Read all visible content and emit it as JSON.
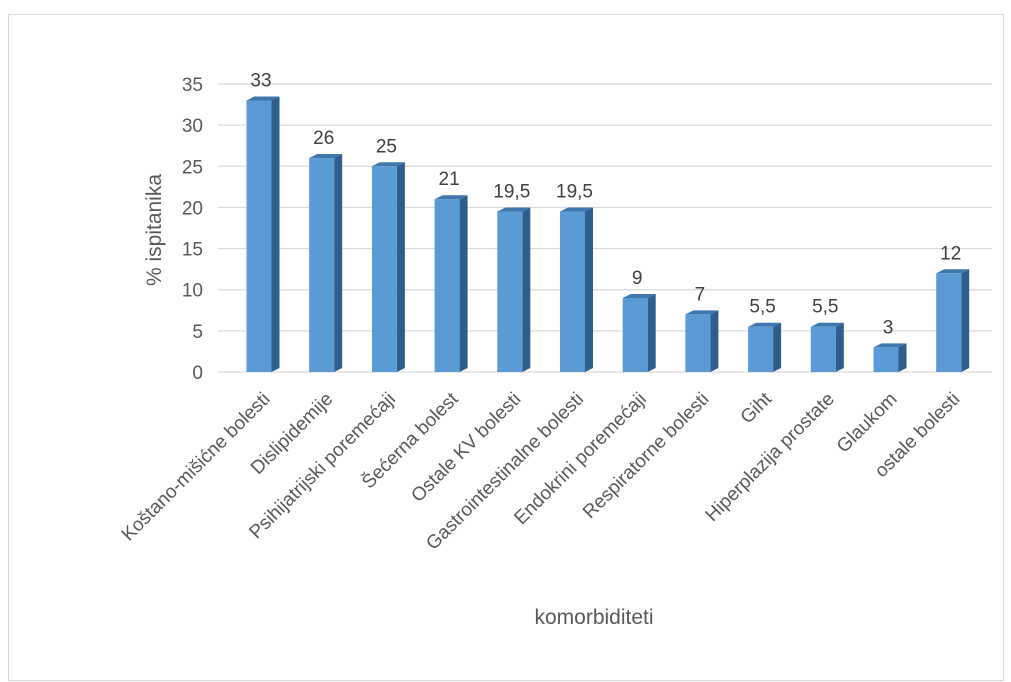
{
  "chart_data": {
    "type": "bar",
    "title": "",
    "xlabel": "komorbiditeti",
    "ylabel": "% ispitanika",
    "ylim": [
      0,
      35
    ],
    "yticks": [
      "0",
      "5",
      "10",
      "15",
      "20",
      "25",
      "30",
      "35"
    ],
    "grid": true,
    "legend": "none",
    "bar_style": "3d",
    "colors": {
      "bar_front": "#5b9bd5",
      "bar_side": "#2e5f8c",
      "bar_top": "#3f77ad",
      "grid": "#d9d9d9"
    },
    "categories": [
      "Koštano-mišićne  bolesti",
      "Dislipidemije",
      "Psihijatrijski poremećaji",
      "Šećerna bolest",
      "Ostale KV bolesti",
      "Gastrointestinalne bolesti",
      "Endokrini poremećaji",
      "Respiratorne bolesti",
      "Giht",
      "Hiperplazija prostate",
      "Glaukom",
      "ostale bolesti"
    ],
    "values": [
      33,
      26,
      25,
      21,
      19.5,
      19.5,
      9,
      7,
      5.5,
      5.5,
      3,
      12
    ],
    "data_labels": [
      "33",
      "26",
      "25",
      "21",
      "19,5",
      "19,5",
      "9",
      "7",
      "5,5",
      "5,5",
      "3",
      "12"
    ]
  }
}
